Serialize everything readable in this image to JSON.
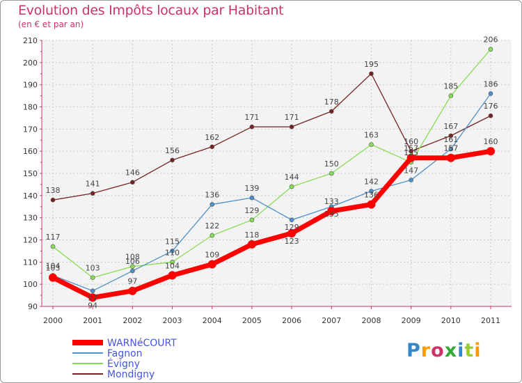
{
  "title": "Evolution des Impôts locaux par Habitant",
  "subtitle": "(en € et par an)",
  "logo": {
    "text": "Proxiti",
    "letter_colors": [
      "#3388cc",
      "#ff9900",
      "#cc3366",
      "#33aa33",
      "#3388cc",
      "#99cc33",
      "#ff9900"
    ]
  },
  "chart_data": {
    "type": "line",
    "x": [
      2000,
      2001,
      2002,
      2003,
      2004,
      2005,
      2006,
      2007,
      2008,
      2009,
      2010,
      2011
    ],
    "ylim": [
      90,
      210
    ],
    "yticks": [
      90,
      100,
      110,
      120,
      130,
      140,
      150,
      160,
      170,
      180,
      190,
      200,
      210
    ],
    "grid": true,
    "legend_position": "bottom-left",
    "series": [
      {
        "name": "WARNéCOURT",
        "color": "#ff0000",
        "values": [
          103,
          94,
          97,
          104,
          109,
          118,
          123,
          133,
          136,
          157,
          157,
          160
        ],
        "labels": [
          "103",
          "94",
          "97",
          "104",
          "109",
          "118",
          "123",
          "133",
          "136",
          "157",
          "157",
          "160"
        ]
      },
      {
        "name": "Fagnon",
        "color": "#4d8fc9",
        "values": [
          104,
          97,
          106,
          115,
          136,
          139,
          129,
          135,
          142,
          147,
          161,
          186
        ],
        "labels": [
          "104",
          "97",
          "106",
          "115",
          "136",
          "139",
          "129",
          "135",
          "142",
          "147",
          "161",
          "186"
        ]
      },
      {
        "name": "Évigny",
        "color": "#88dd55",
        "values": [
          117,
          103,
          108,
          110,
          122,
          129,
          144,
          150,
          163,
          155,
          185,
          206
        ],
        "labels": [
          "117",
          "103",
          "108",
          "110",
          "122",
          "129",
          "144",
          "150",
          "163",
          "155",
          "185",
          "206"
        ]
      },
      {
        "name": "Mondigny",
        "color": "#772222",
        "values": [
          138,
          141,
          146,
          156,
          162,
          171,
          171,
          178,
          195,
          160,
          167,
          176
        ],
        "labels": [
          "138",
          "141",
          "146",
          "156",
          "162",
          "171",
          "171",
          "178",
          "195",
          "160",
          "167",
          "176"
        ]
      }
    ]
  }
}
